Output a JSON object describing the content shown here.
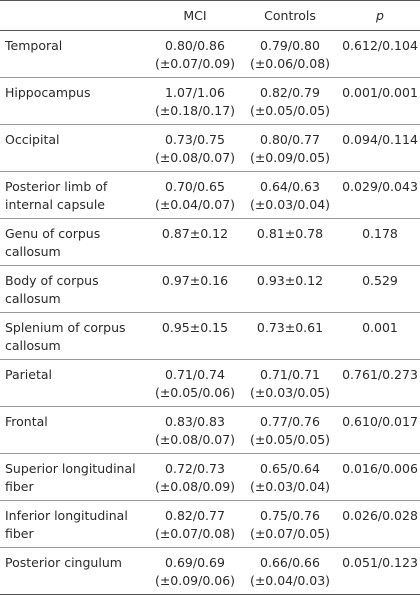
{
  "headers": [
    "",
    "MCI",
    "Controls",
    "p"
  ],
  "rows": [
    {
      "label": [
        "Temporal"
      ],
      "mci": [
        "0.80/0.86",
        "(±0.07/0.09)"
      ],
      "controls": [
        "0.79/0.80",
        "(±0.06/0.08)"
      ],
      "p": "0.612/0.104"
    },
    {
      "label": [
        "Hippocampus"
      ],
      "mci": [
        "1.07/1.06",
        "(±0.18/0.17)"
      ],
      "controls": [
        "0.82/0.79",
        "(±0.05/0.05)"
      ],
      "p": "0.001/0.001"
    },
    {
      "label": [
        "Occipital"
      ],
      "mci": [
        "0.73/0.75",
        "(±0.08/0.07)"
      ],
      "controls": [
        "0.80/0.77",
        "(±0.09/0.05)"
      ],
      "p": "0.094/0.114"
    },
    {
      "label": [
        "Posterior limb of",
        "internal capsule"
      ],
      "mci": [
        "0.70/0.65",
        "(±0.04/0.07)"
      ],
      "controls": [
        "0.64/0.63",
        "(±0.03/0.04)"
      ],
      "p": "0.029/0.043"
    },
    {
      "label": [
        "Genu of corpus",
        "callosum"
      ],
      "mci": [
        "0.87±0.12"
      ],
      "controls": [
        "0.81±0.78"
      ],
      "p": "0.178"
    },
    {
      "label": [
        "Body of corpus",
        "callosum"
      ],
      "mci": [
        "0.97±0.16"
      ],
      "controls": [
        "0.93±0.12"
      ],
      "p": "0.529"
    },
    {
      "label": [
        "Splenium of corpus",
        "callosum"
      ],
      "mci": [
        "0.95±0.15"
      ],
      "controls": [
        "0.73±0.61"
      ],
      "p": "0.001"
    },
    {
      "label": [
        "Parietal"
      ],
      "mci": [
        "0.71/0.74",
        "(±0.05/0.06)"
      ],
      "controls": [
        "0.71/0.71",
        "(±0.03/0.05)"
      ],
      "p": "0.761/0.273"
    },
    {
      "label": [
        "Frontal"
      ],
      "mci": [
        "0.83/0.83",
        "(±0.08/0.07)"
      ],
      "controls": [
        "0.77/0.76",
        "(±0.05/0.05)"
      ],
      "p": "0.610/0.017"
    },
    {
      "label": [
        "Superior longitudinal",
        "fiber"
      ],
      "mci": [
        "0.72/0.73",
        "(±0.08/0.09)"
      ],
      "controls": [
        "0.65/0.64",
        "(±0.03/0.04)"
      ],
      "p": "0.016/0.006"
    },
    {
      "label": [
        "Inferior longitudinal",
        "fiber"
      ],
      "mci": [
        "0.82/0.77",
        "(±0.07/0.08)"
      ],
      "controls": [
        "0.75/0.76",
        "(±0.07/0.05)"
      ],
      "p": "0.026/0.028"
    },
    {
      "label": [
        "Posterior cingulum"
      ],
      "mci": [
        "0.69/0.69",
        "(±0.09/0.06)"
      ],
      "controls": [
        "0.66/0.66",
        "(±0.04/0.03)"
      ],
      "p": "0.051/0.123"
    }
  ]
}
